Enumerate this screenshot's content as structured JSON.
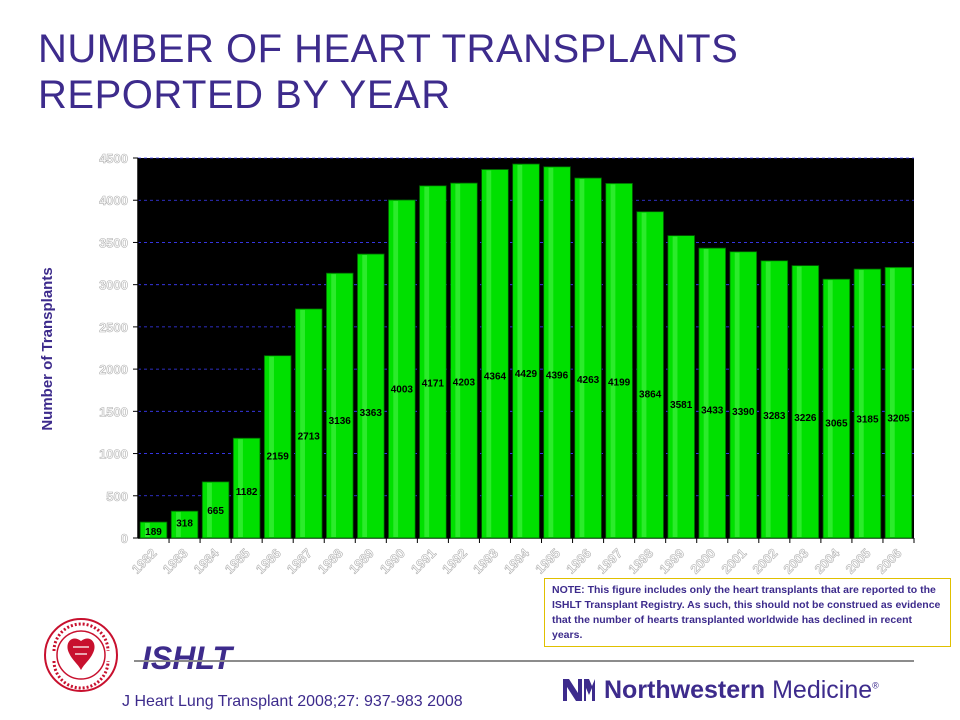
{
  "header": {
    "title_line1": "NUMBER OF HEART TRANSPLANTS",
    "title_line2": "REPORTED BY YEAR"
  },
  "chart_data": {
    "type": "bar",
    "title": "NUMBER OF HEART TRANSPLANTS REPORTED BY YEAR",
    "ylabel": "Number of Transplants",
    "xlabel": "",
    "categories": [
      "1982",
      "1983",
      "1984",
      "1985",
      "1986",
      "1987",
      "1988",
      "1989",
      "1990",
      "1991",
      "1992",
      "1993",
      "1994",
      "1995",
      "1996",
      "1997",
      "1998",
      "1999",
      "2000",
      "2001",
      "2002",
      "2003",
      "2004",
      "2005",
      "2006"
    ],
    "values": [
      189,
      318,
      665,
      1182,
      2159,
      2713,
      3136,
      3363,
      4003,
      4171,
      4203,
      4364,
      4429,
      4396,
      4263,
      4199,
      3864,
      3581,
      3433,
      3390,
      3283,
      3226,
      3065,
      3185,
      3205
    ],
    "ylim": [
      0,
      4500
    ],
    "yticks": [
      0,
      500,
      1000,
      1500,
      2000,
      2500,
      3000,
      3500,
      4000,
      4500
    ],
    "grid": true,
    "bar_color": "#00e000",
    "plot_background": "#000000",
    "label_color": "#000000"
  },
  "note": {
    "text": "NOTE: This figure includes only the heart transplants that are reported to the ISHLT Transplant Registry.  As such, this should not be construed as evidence that the number of hearts transplanted  worldwide has declined in recent years."
  },
  "footer": {
    "org": "ISHLT",
    "citation": "J Heart Lung Transplant 2008;27: 937-983 2008",
    "brand_bold": "Northwestern",
    "brand_regular": "Medicine",
    "brand_reg_mark": "®",
    "seal_text": "INTERNATIONAL SOCIETY FOR HEART & LUNG TRANSPLANTATION"
  },
  "colors": {
    "title": "#3d2b8c",
    "bar": "#00e000",
    "plot_bg": "#000000",
    "seal": "#c8102e"
  }
}
